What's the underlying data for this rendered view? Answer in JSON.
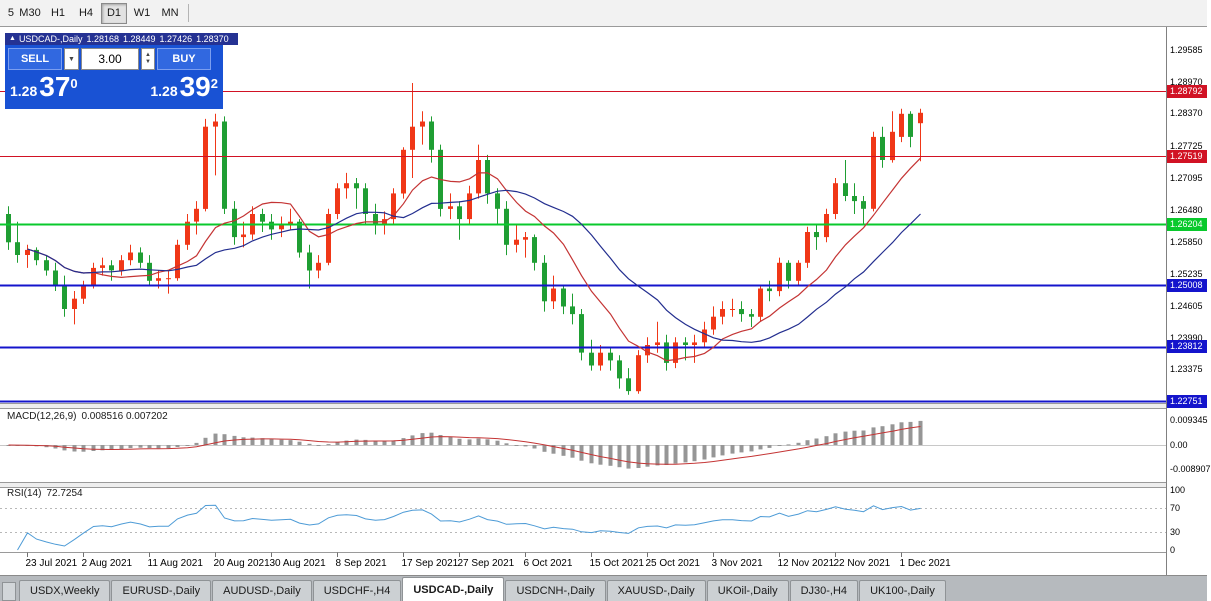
{
  "toolbar": {
    "timeframes": [
      {
        "label": "5",
        "cut": true,
        "active": false
      },
      {
        "label": "M30",
        "active": false
      },
      {
        "label": "H1",
        "active": false
      },
      {
        "label": "H4",
        "active": false
      },
      {
        "label": "D1",
        "active": true
      },
      {
        "label": "W1",
        "active": false
      },
      {
        "label": "MN",
        "active": false
      }
    ]
  },
  "chart": {
    "symbol_title": "USDCAD-,Daily",
    "ohlc": {
      "open": "1.28168",
      "high": "1.28449",
      "low": "1.27426",
      "close": "1.28370"
    },
    "trade_panel": {
      "sell_label": "SELL",
      "buy_label": "BUY",
      "volume": "3.00",
      "bid": {
        "prefix": "1.28",
        "big": "37",
        "sup": "0"
      },
      "ask": {
        "prefix": "1.28",
        "big": "39",
        "sup": "2"
      }
    }
  },
  "chart_data": {
    "type": "candlestick",
    "symbol": "USDCAD",
    "timeframe": "Daily",
    "colors": {
      "up": "#f03717",
      "down": "#1f9e33",
      "ma_fast": "#c43434",
      "ma_slow": "#232e8f",
      "macd_hist": "#969696",
      "macd_signal": "#c43434",
      "rsi": "#4d9bd6"
    },
    "y_axis": {
      "min": 1.2272,
      "max": 1.3004,
      "labels": [
        "1.29585",
        "1.28970",
        "1.28370",
        "1.27725",
        "1.27095",
        "1.26480",
        "1.25850",
        "1.25235",
        "1.24605",
        "1.23990",
        "1.23375"
      ]
    },
    "current_price": "1.28370",
    "levels": [
      {
        "price": 1.28792,
        "label": "1.28792",
        "color": "#d11224",
        "width": 1.2
      },
      {
        "price": 1.27519,
        "label": "1.27519",
        "color": "#d11224",
        "width": 1.2
      },
      {
        "price": 1.26204,
        "label": "1.26204",
        "color": "#09c92c",
        "width": 2
      },
      {
        "price": 1.25008,
        "label": "1.25008",
        "color": "#1414cc",
        "width": 2
      },
      {
        "price": 1.23812,
        "label": "1.23812",
        "color": "#1414cc",
        "width": 2
      },
      {
        "price": 1.22751,
        "label": "1.22751",
        "color": "#1414cc",
        "width": 2
      }
    ],
    "ma": {
      "fast_period": 10,
      "slow_period": 20
    },
    "candles": [
      [
        1.264,
        1.2655,
        1.257,
        1.2585
      ],
      [
        1.2585,
        1.2625,
        1.2545,
        1.256
      ],
      [
        1.256,
        1.258,
        1.2535,
        1.257
      ],
      [
        1.257,
        1.2575,
        1.254,
        1.255
      ],
      [
        1.255,
        1.256,
        1.252,
        1.253
      ],
      [
        1.253,
        1.2545,
        1.249,
        1.25
      ],
      [
        1.25,
        1.252,
        1.244,
        1.2455
      ],
      [
        1.2455,
        1.249,
        1.2425,
        1.2475
      ],
      [
        1.2475,
        1.251,
        1.2465,
        1.25
      ],
      [
        1.25,
        1.2545,
        1.2495,
        1.2535
      ],
      [
        1.2535,
        1.2555,
        1.252,
        1.254
      ],
      [
        1.254,
        1.255,
        1.251,
        1.253
      ],
      [
        1.253,
        1.256,
        1.252,
        1.255
      ],
      [
        1.255,
        1.258,
        1.254,
        1.2565
      ],
      [
        1.2565,
        1.2575,
        1.2535,
        1.2545
      ],
      [
        1.2545,
        1.256,
        1.25,
        1.251
      ],
      [
        1.251,
        1.253,
        1.2495,
        1.2515
      ],
      [
        1.2515,
        1.253,
        1.2485,
        1.2515
      ],
      [
        1.2515,
        1.259,
        1.251,
        1.258
      ],
      [
        1.258,
        1.264,
        1.257,
        1.2625
      ],
      [
        1.2625,
        1.2665,
        1.26,
        1.265
      ],
      [
        1.265,
        1.2825,
        1.2645,
        1.281
      ],
      [
        1.281,
        1.2835,
        1.2715,
        1.282
      ],
      [
        1.282,
        1.283,
        1.264,
        1.265
      ],
      [
        1.265,
        1.2665,
        1.258,
        1.2595
      ],
      [
        1.2595,
        1.2625,
        1.2575,
        1.26
      ],
      [
        1.26,
        1.2655,
        1.259,
        1.264
      ],
      [
        1.264,
        1.265,
        1.2605,
        1.2625
      ],
      [
        1.2625,
        1.264,
        1.259,
        1.261
      ],
      [
        1.261,
        1.2635,
        1.2595,
        1.262
      ],
      [
        1.262,
        1.265,
        1.261,
        1.2625
      ],
      [
        1.2625,
        1.263,
        1.2555,
        1.2565
      ],
      [
        1.2565,
        1.258,
        1.2495,
        1.253
      ],
      [
        1.253,
        1.256,
        1.2515,
        1.2545
      ],
      [
        1.2545,
        1.265,
        1.254,
        1.264
      ],
      [
        1.264,
        1.27,
        1.263,
        1.269
      ],
      [
        1.269,
        1.272,
        1.267,
        1.27
      ],
      [
        1.27,
        1.271,
        1.265,
        1.269
      ],
      [
        1.269,
        1.27,
        1.262,
        1.264
      ],
      [
        1.264,
        1.266,
        1.26,
        1.262
      ],
      [
        1.262,
        1.2645,
        1.26,
        1.263
      ],
      [
        1.263,
        1.269,
        1.262,
        1.268
      ],
      [
        1.268,
        1.277,
        1.267,
        1.2765
      ],
      [
        1.2765,
        1.2895,
        1.271,
        1.281
      ],
      [
        1.281,
        1.284,
        1.2775,
        1.282
      ],
      [
        1.282,
        1.283,
        1.274,
        1.2765
      ],
      [
        1.2765,
        1.2775,
        1.2635,
        1.265
      ],
      [
        1.265,
        1.268,
        1.263,
        1.2655
      ],
      [
        1.2655,
        1.2665,
        1.259,
        1.263
      ],
      [
        1.263,
        1.2695,
        1.262,
        1.268
      ],
      [
        1.268,
        1.2775,
        1.267,
        1.2745
      ],
      [
        1.2745,
        1.2755,
        1.266,
        1.268
      ],
      [
        1.268,
        1.269,
        1.262,
        1.265
      ],
      [
        1.265,
        1.2665,
        1.256,
        1.258
      ],
      [
        1.258,
        1.262,
        1.2565,
        1.259
      ],
      [
        1.259,
        1.2605,
        1.2555,
        1.2595
      ],
      [
        1.2595,
        1.26,
        1.253,
        1.2545
      ],
      [
        1.2545,
        1.256,
        1.245,
        1.247
      ],
      [
        1.247,
        1.252,
        1.2455,
        1.2495
      ],
      [
        1.2495,
        1.25,
        1.2445,
        1.246
      ],
      [
        1.246,
        1.2485,
        1.2425,
        1.2445
      ],
      [
        1.2445,
        1.2455,
        1.2355,
        1.237
      ],
      [
        1.237,
        1.2395,
        1.2335,
        1.2345
      ],
      [
        1.2345,
        1.2385,
        1.2335,
        1.237
      ],
      [
        1.237,
        1.238,
        1.2335,
        1.2355
      ],
      [
        1.2355,
        1.2365,
        1.23,
        1.232
      ],
      [
        1.232,
        1.234,
        1.2288,
        1.2295
      ],
      [
        1.2295,
        1.2375,
        1.229,
        1.2365
      ],
      [
        1.2365,
        1.24,
        1.235,
        1.2385
      ],
      [
        1.2385,
        1.243,
        1.237,
        1.239
      ],
      [
        1.239,
        1.2405,
        1.2335,
        1.235
      ],
      [
        1.235,
        1.24,
        1.234,
        1.239
      ],
      [
        1.239,
        1.24,
        1.2355,
        1.2385
      ],
      [
        1.2385,
        1.2405,
        1.235,
        1.239
      ],
      [
        1.239,
        1.243,
        1.238,
        1.2415
      ],
      [
        1.2415,
        1.246,
        1.2405,
        1.244
      ],
      [
        1.244,
        1.247,
        1.2425,
        1.2455
      ],
      [
        1.2455,
        1.2475,
        1.244,
        1.2455
      ],
      [
        1.2455,
        1.247,
        1.243,
        1.2445
      ],
      [
        1.2445,
        1.2455,
        1.242,
        1.244
      ],
      [
        1.244,
        1.25,
        1.243,
        1.2495
      ],
      [
        1.2495,
        1.251,
        1.247,
        1.249
      ],
      [
        1.249,
        1.2555,
        1.248,
        1.2545
      ],
      [
        1.2545,
        1.255,
        1.2495,
        1.251
      ],
      [
        1.251,
        1.255,
        1.25,
        1.2545
      ],
      [
        1.2545,
        1.2615,
        1.2535,
        1.2605
      ],
      [
        1.2605,
        1.262,
        1.257,
        1.2595
      ],
      [
        1.2595,
        1.265,
        1.2585,
        1.264
      ],
      [
        1.264,
        1.271,
        1.263,
        1.27
      ],
      [
        1.27,
        1.2745,
        1.2665,
        1.2675
      ],
      [
        1.2675,
        1.27,
        1.264,
        1.2665
      ],
      [
        1.2665,
        1.2675,
        1.262,
        1.265
      ],
      [
        1.265,
        1.28,
        1.2645,
        1.279
      ],
      [
        1.279,
        1.281,
        1.273,
        1.2745
      ],
      [
        1.2745,
        1.284,
        1.274,
        1.28
      ],
      [
        1.279,
        1.2845,
        1.278,
        1.2835
      ],
      [
        1.2835,
        1.284,
        1.277,
        1.279
      ],
      [
        1.28168,
        1.28449,
        1.27426,
        1.2837
      ]
    ],
    "x_labels": [
      {
        "i": 2,
        "t": "23 Jul 2021"
      },
      {
        "i": 8,
        "t": "2 Aug 2021"
      },
      {
        "i": 15,
        "t": "11 Aug 2021"
      },
      {
        "i": 22,
        "t": "20 Aug 2021"
      },
      {
        "i": 28,
        "t": "30 Aug 2021"
      },
      {
        "i": 35,
        "t": "8 Sep 2021"
      },
      {
        "i": 42,
        "t": "17 Sep 2021"
      },
      {
        "i": 48,
        "t": "27 Sep 2021"
      },
      {
        "i": 55,
        "t": "6 Oct 2021"
      },
      {
        "i": 62,
        "t": "15 Oct 2021"
      },
      {
        "i": 68,
        "t": "25 Oct 2021"
      },
      {
        "i": 75,
        "t": "3 Nov 2021"
      },
      {
        "i": 82,
        "t": "12 Nov 2021"
      },
      {
        "i": 88,
        "t": "22 Nov 2021"
      },
      {
        "i": 95,
        "t": "1 Dec 2021"
      }
    ],
    "macd": {
      "label": "MACD(12,26,9)",
      "values": "0.008516 0.007202",
      "axis": [
        {
          "v": 0.009345,
          "t": "0.009345"
        },
        {
          "v": 0,
          "t": "0.00"
        },
        {
          "v": -0.008907,
          "t": "-0.008907"
        }
      ],
      "vmax": 0.0137
    },
    "rsi": {
      "label": "RSI(14)",
      "value": "72.7254",
      "axis": [
        {
          "v": 100,
          "t": "100"
        },
        {
          "v": 70,
          "t": "70"
        },
        {
          "v": 30,
          "t": "30"
        },
        {
          "v": 0,
          "t": "0"
        }
      ],
      "dashed_levels": [
        70,
        30
      ]
    }
  },
  "tabs": {
    "items": [
      "USDX,Weekly",
      "EURUSD-,Daily",
      "AUDUSD-,Daily",
      "USDCHF-,H4",
      "USDCAD-,Daily",
      "USDCNH-,Daily",
      "XAUUSD-,Daily",
      "UKOil-,Daily",
      "DJ30-,H4",
      "UK100-,Daily"
    ],
    "active_index": 4
  }
}
